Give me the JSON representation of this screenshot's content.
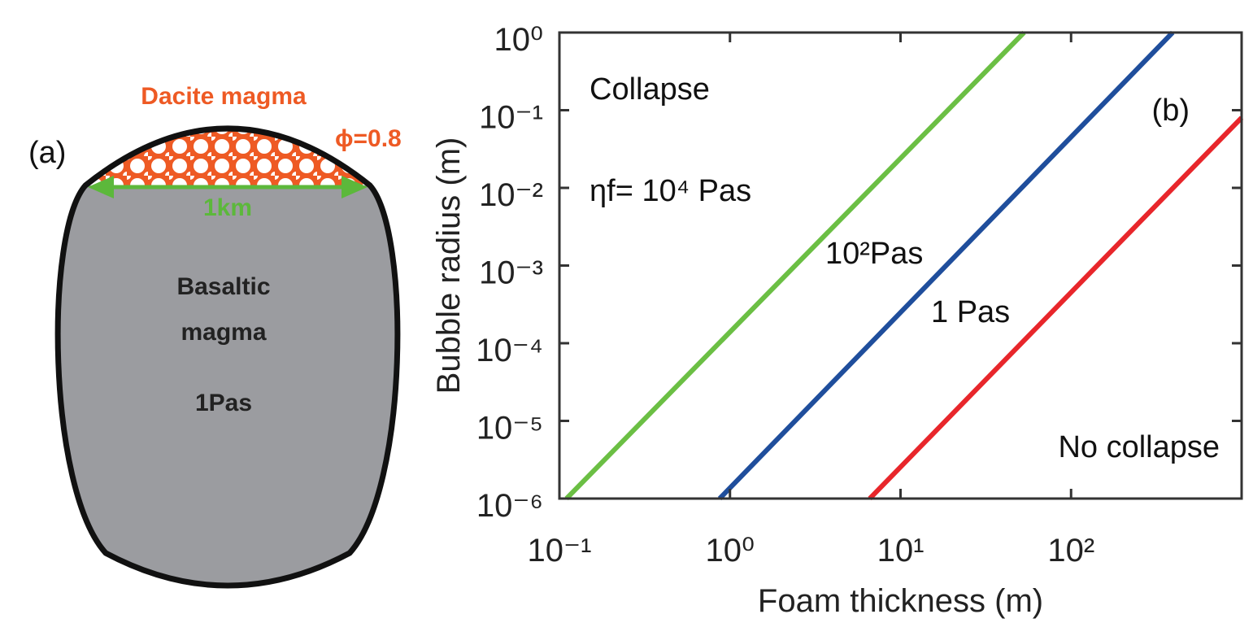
{
  "chart_data": {
    "type": "line",
    "xlabel": "Foam thickness (m)",
    "ylabel": "Bubble radius (m)",
    "xscale": "log",
    "yscale": "log",
    "xlim": [
      0.1,
      1000
    ],
    "ylim": [
      1e-06,
      1
    ],
    "xticks": [
      {
        "value": 0.1,
        "label": "10⁻¹"
      },
      {
        "value": 1,
        "label": "10⁰"
      },
      {
        "value": 10,
        "label": "10¹"
      },
      {
        "value": 100,
        "label": "10²"
      }
    ],
    "yticks": [
      {
        "value": 1e-06,
        "label": "10⁻⁶"
      },
      {
        "value": 1e-05,
        "label": "10⁻⁵"
      },
      {
        "value": 0.0001,
        "label": "10⁻⁴"
      },
      {
        "value": 0.001,
        "label": "10⁻³"
      },
      {
        "value": 0.01,
        "label": "10⁻²"
      },
      {
        "value": 0.1,
        "label": "10⁻¹"
      },
      {
        "value": 1,
        "label": "10⁰"
      }
    ],
    "annotations": [
      "Collapse",
      "No collapse",
      "(b)"
    ],
    "series": [
      {
        "name": "ηf= 10⁴ Pas",
        "color": "#6bbf44",
        "x": [
          0.11,
          53
        ],
        "values": [
          1e-06,
          1
        ]
      },
      {
        "name": "10²Pas",
        "color": "#1f4e9c",
        "x": [
          0.87,
          394
        ],
        "values": [
          1e-06,
          1
        ]
      },
      {
        "name": "1 Pas",
        "color": "#e8262b",
        "x": [
          6.6,
          1000
        ],
        "values": [
          1e-06,
          0.08
        ]
      }
    ]
  },
  "diagram": {
    "panel_label": "(a)",
    "top_label": "Dacite magma",
    "porosity": "ϕ=0.8",
    "width_label": "1km",
    "body_lines": [
      "Basaltic",
      "magma"
    ],
    "body_viscosity": "1Pas"
  }
}
